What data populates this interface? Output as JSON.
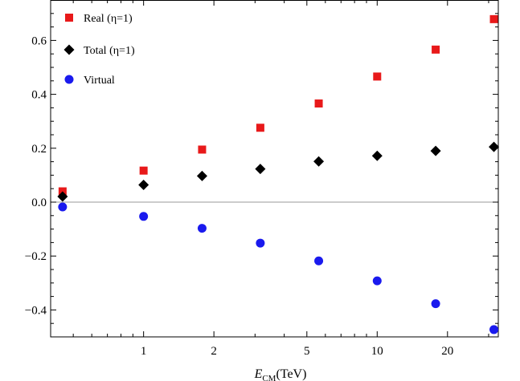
{
  "chart_data": {
    "type": "scatter",
    "title": "",
    "xlabel": {
      "main": "E",
      "sub": "CM",
      "unit": "(TeV)"
    },
    "ylabel": "",
    "x_scale": "log",
    "xlim": [
      0.4,
      33
    ],
    "ylim": [
      -0.5,
      0.75
    ],
    "grid": false,
    "legend_position": "top-left",
    "zero_line": true,
    "x_ticks": [
      {
        "value": 1,
        "label": "1"
      },
      {
        "value": 2,
        "label": "2"
      },
      {
        "value": 5,
        "label": "5"
      },
      {
        "value": 10,
        "label": "10"
      },
      {
        "value": 20,
        "label": "20"
      }
    ],
    "y_ticks": [
      {
        "value": -0.4,
        "label": "−0.4"
      },
      {
        "value": -0.2,
        "label": "−0.2"
      },
      {
        "value": 0.0,
        "label": "0.0"
      },
      {
        "value": 0.2,
        "label": "0.2"
      },
      {
        "value": 0.4,
        "label": "0.4"
      },
      {
        "value": 0.6,
        "label": "0.6"
      }
    ],
    "x": [
      0.45,
      1.0,
      1.78,
      3.16,
      5.62,
      10.0,
      17.8,
      31.6
    ],
    "series": [
      {
        "name": "Real (η=1)",
        "marker": "square",
        "color": "#e8191a",
        "values": [
          0.04,
          0.117,
          0.195,
          0.276,
          0.366,
          0.466,
          0.566,
          0.679
        ]
      },
      {
        "name": "Total (η=1)",
        "marker": "diamond",
        "color": "#000000",
        "values": [
          0.021,
          0.064,
          0.097,
          0.123,
          0.151,
          0.172,
          0.19,
          0.205
        ]
      },
      {
        "name": "Virtual",
        "marker": "circle",
        "color": "#1a1aee",
        "values": [
          -0.018,
          -0.053,
          -0.097,
          -0.152,
          -0.218,
          -0.292,
          -0.377,
          -0.473
        ]
      }
    ]
  }
}
